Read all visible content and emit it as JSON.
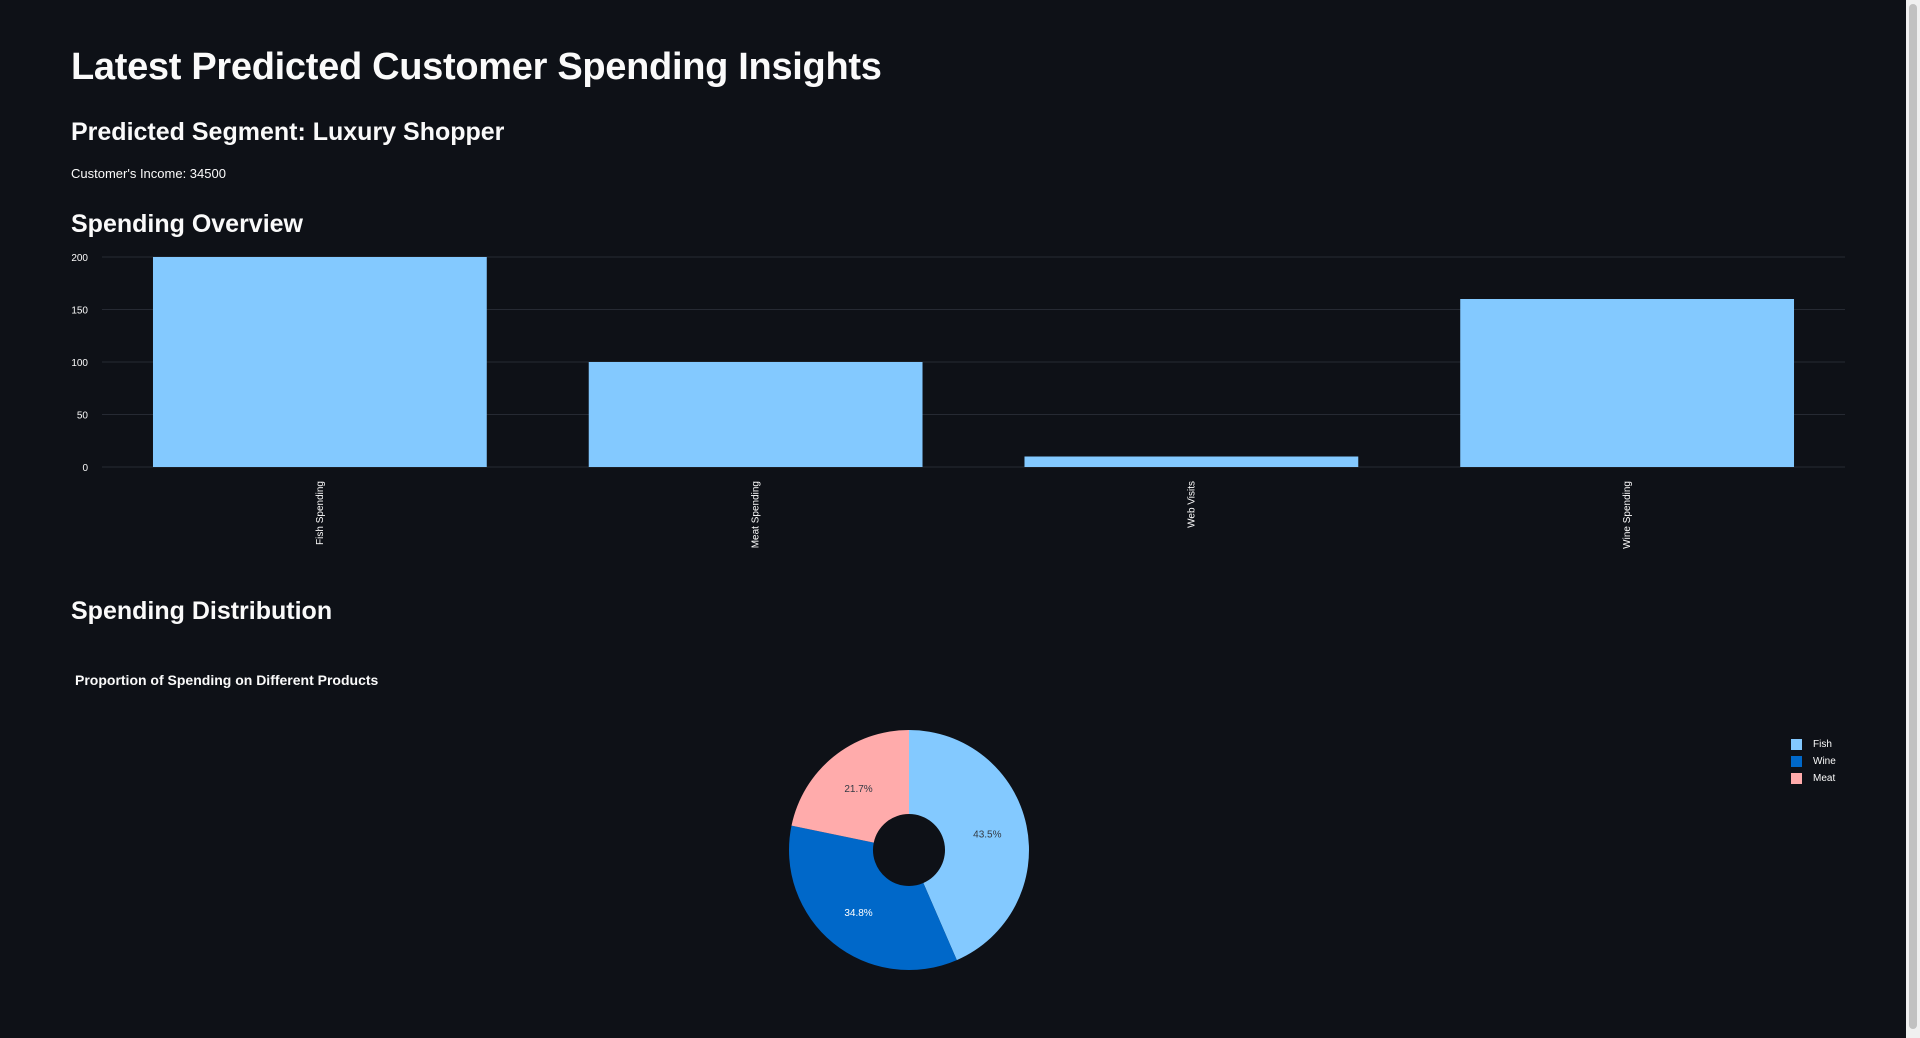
{
  "header": {
    "title": "Latest Predicted Customer Spending Insights",
    "segment": "Predicted Segment: Luxury Shopper",
    "income": "Customer's Income: 34500"
  },
  "sections": {
    "overview": "Spending Overview",
    "distribution": "Spending Distribution"
  },
  "colors": {
    "background": "#0e1117",
    "bar": "#83c9ff",
    "grid": "#262a33",
    "fish": "#83c9ff",
    "wine": "#0068c9",
    "meat": "#ffabab"
  },
  "chart_data": [
    {
      "type": "bar",
      "title": "",
      "categories": [
        "Fish Spending",
        "Meat Spending",
        "Web Visits",
        "Wine Spending"
      ],
      "values": [
        200,
        100,
        10,
        160
      ],
      "yticks": [
        0,
        50,
        100,
        150,
        200
      ],
      "ylim": [
        0,
        200
      ],
      "grid": true,
      "xlabel": "",
      "ylabel": ""
    },
    {
      "type": "pie",
      "title": "Proportion of Spending on Different Products",
      "hole": true,
      "labels": [
        "Fish",
        "Wine",
        "Meat"
      ],
      "values": [
        200,
        160,
        100
      ],
      "percent_labels": [
        "43.5%",
        "34.8%",
        "21.7%"
      ],
      "legend_position": "right"
    }
  ]
}
